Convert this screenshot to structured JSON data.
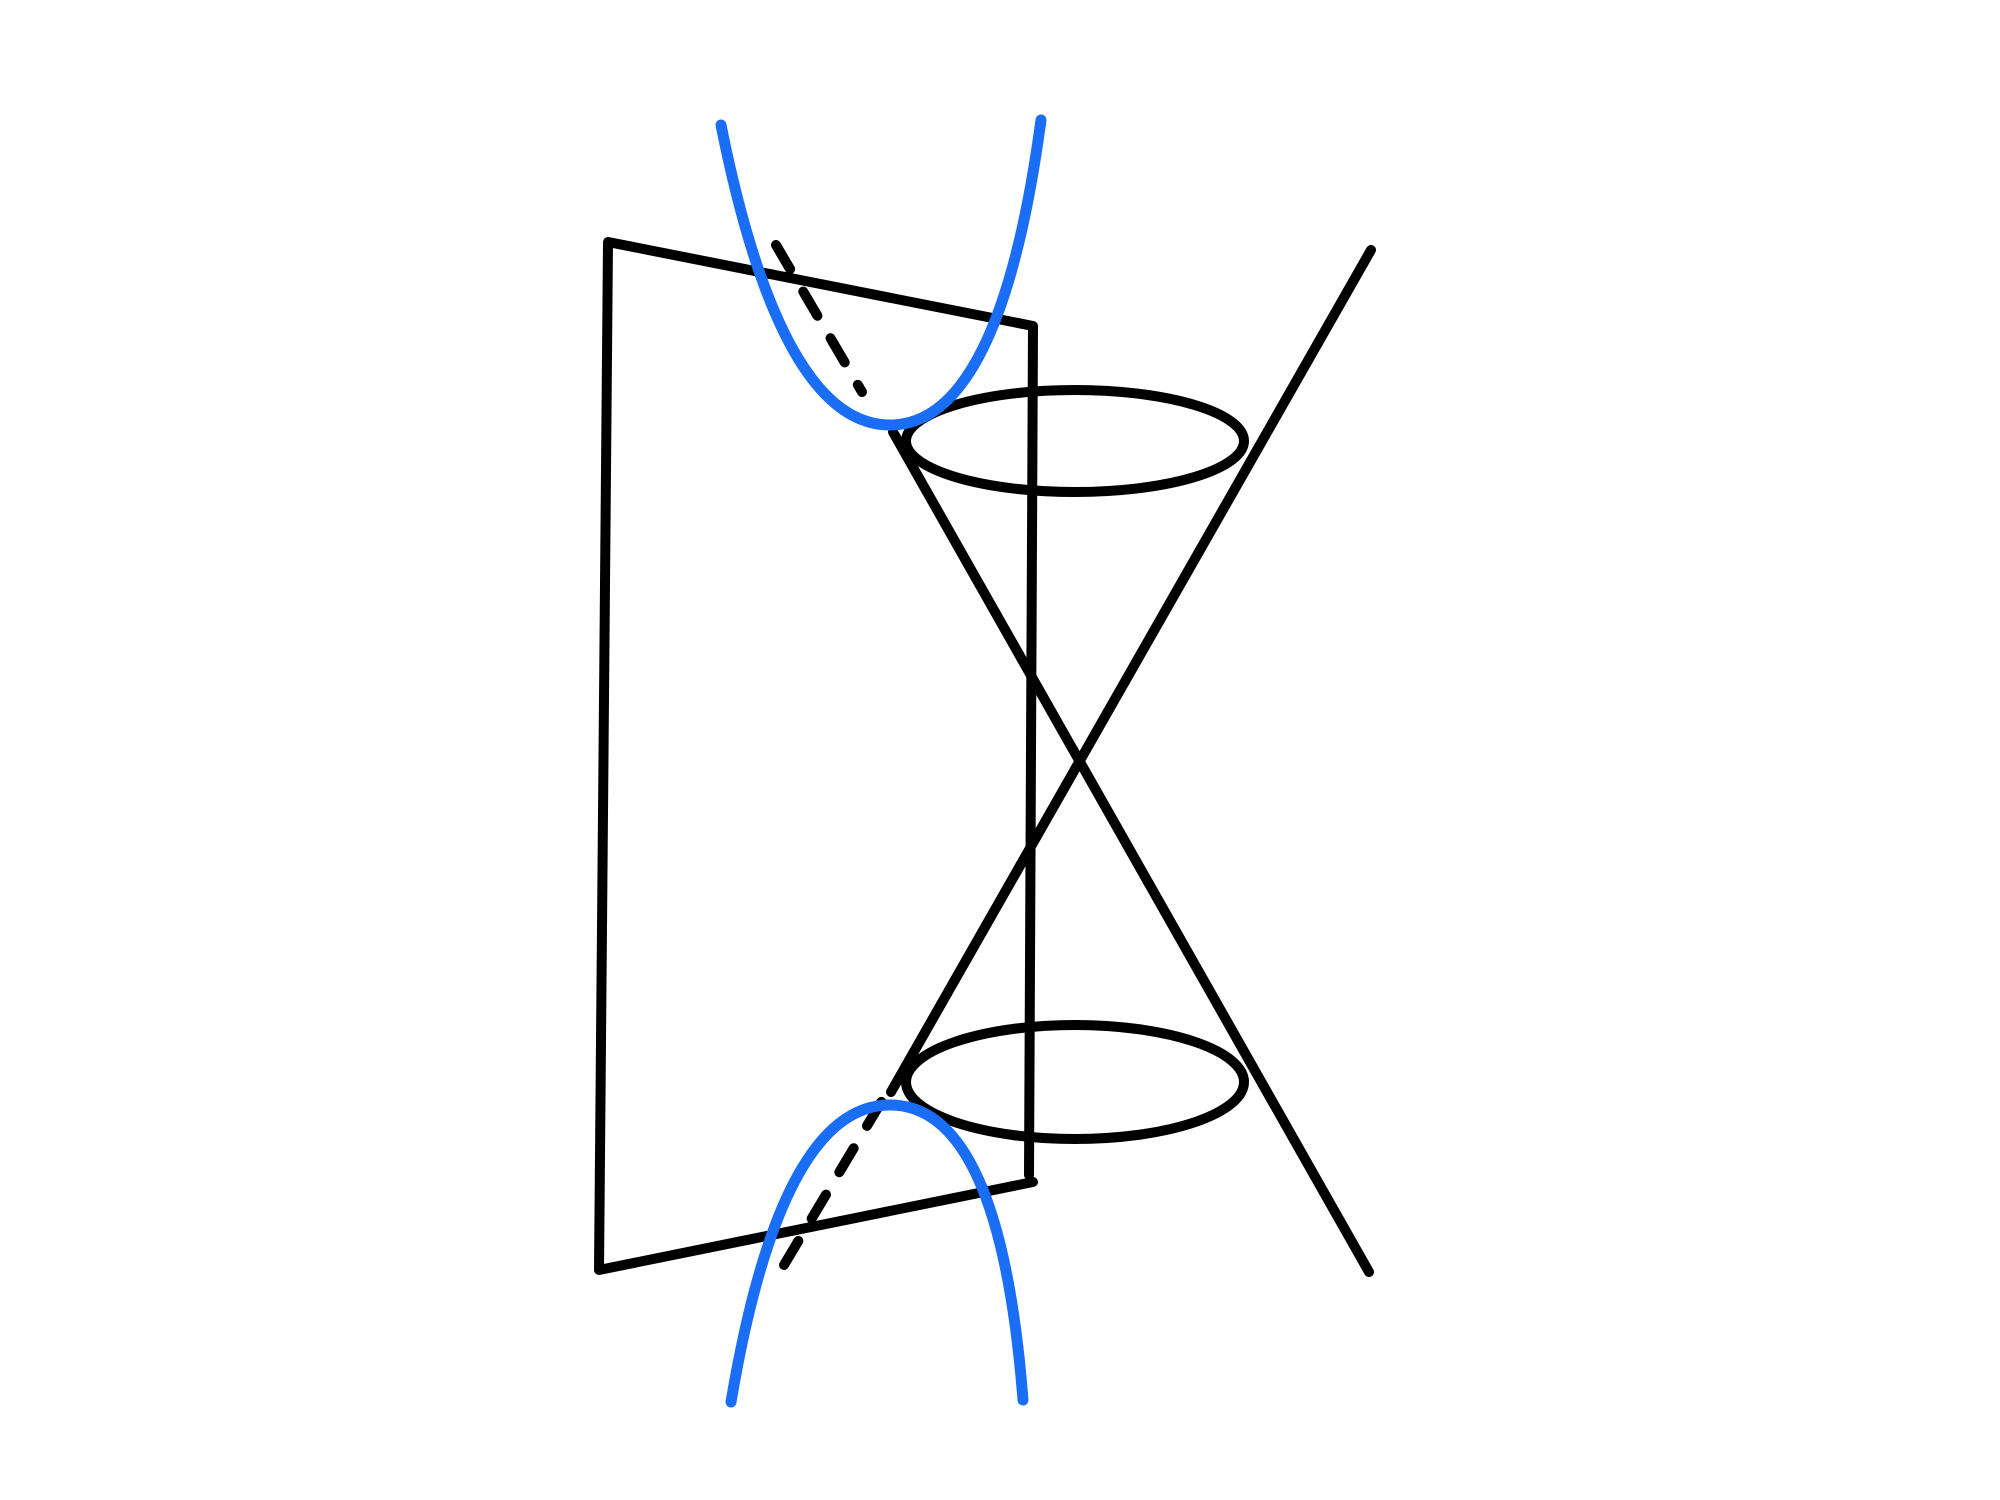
{
  "diagram": {
    "description_visible_text": "",
    "colors": {
      "background": "#ffffff",
      "outline": "#000000",
      "hyperbola": "#1a6ef5"
    },
    "elements": [
      "double-cone",
      "cutting-plane",
      "hyperbola-upper-branch",
      "hyperbola-lower-branch"
    ]
  }
}
